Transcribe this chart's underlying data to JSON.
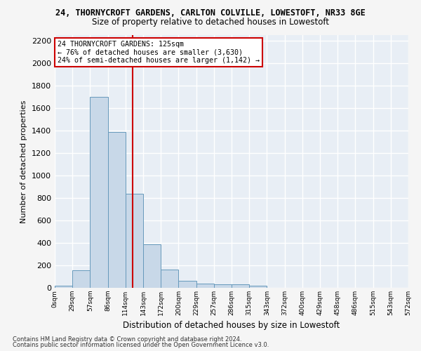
{
  "title1": "24, THORNYCROFT GARDENS, CARLTON COLVILLE, LOWESTOFT, NR33 8GE",
  "title2": "Size of property relative to detached houses in Lowestoft",
  "xlabel": "Distribution of detached houses by size in Lowestoft",
  "ylabel": "Number of detached properties",
  "footnote1": "Contains HM Land Registry data © Crown copyright and database right 2024.",
  "footnote2": "Contains public sector information licensed under the Open Government Licence v3.0.",
  "bin_labels": [
    "0sqm",
    "29sqm",
    "57sqm",
    "86sqm",
    "114sqm",
    "143sqm",
    "172sqm",
    "200sqm",
    "229sqm",
    "257sqm",
    "286sqm",
    "315sqm",
    "343sqm",
    "372sqm",
    "400sqm",
    "429sqm",
    "458sqm",
    "486sqm",
    "515sqm",
    "543sqm",
    "572sqm"
  ],
  "bar_values": [
    20,
    155,
    1700,
    1390,
    840,
    385,
    165,
    60,
    35,
    30,
    30,
    20,
    0,
    0,
    0,
    0,
    0,
    0,
    0,
    0
  ],
  "bar_color": "#c8d8e8",
  "bar_edgecolor": "#6699bb",
  "bin_width": 28.5,
  "bin_starts": [
    0,
    28.5,
    57,
    85.5,
    114,
    142.5,
    171,
    199.5,
    228,
    256.5,
    285,
    313.5,
    342,
    370.5,
    399,
    427.5,
    456,
    484.5,
    513,
    541.5
  ],
  "red_line_x": 125,
  "ylim": [
    0,
    2250
  ],
  "yticks": [
    0,
    200,
    400,
    600,
    800,
    1000,
    1200,
    1400,
    1600,
    1800,
    2000,
    2200
  ],
  "annotation_text": "24 THORNYCROFT GARDENS: 125sqm\n← 76% of detached houses are smaller (3,630)\n24% of semi-detached houses are larger (1,142) →",
  "annotation_box_color": "#ffffff",
  "annotation_box_edgecolor": "#cc0000",
  "background_color": "#e8eef5",
  "grid_color": "#ffffff",
  "fig_bg_color": "#f5f5f5"
}
